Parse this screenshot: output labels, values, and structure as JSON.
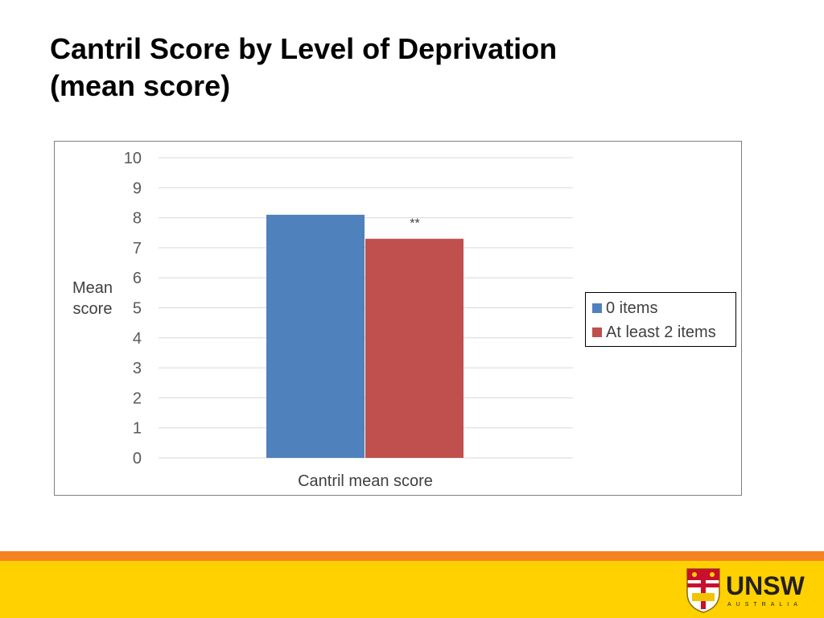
{
  "slide": {
    "title_line1": "Cantril Score by Level of Deprivation",
    "title_line2": "(mean score)"
  },
  "chart_data": {
    "type": "bar",
    "categories": [
      "Cantril mean score"
    ],
    "series": [
      {
        "name": "0 items",
        "values": [
          8.1
        ],
        "color": "#4f81bd"
      },
      {
        "name": "At least 2 items",
        "values": [
          7.3
        ],
        "color": "#c0504d",
        "annotation": "**"
      }
    ],
    "title": "",
    "xlabel": "",
    "ylabel_lines": [
      "Mean",
      "score"
    ],
    "ylim": [
      0,
      10
    ],
    "yticks": [
      0,
      1,
      2,
      3,
      4,
      5,
      6,
      7,
      8,
      9,
      10
    ],
    "grid": true,
    "legend_position": "right"
  },
  "branding": {
    "logo_text": "UNSW",
    "logo_subtext": "AUSTRALIA",
    "accent_orange": "#f58220",
    "accent_yellow": "#ffd100"
  }
}
